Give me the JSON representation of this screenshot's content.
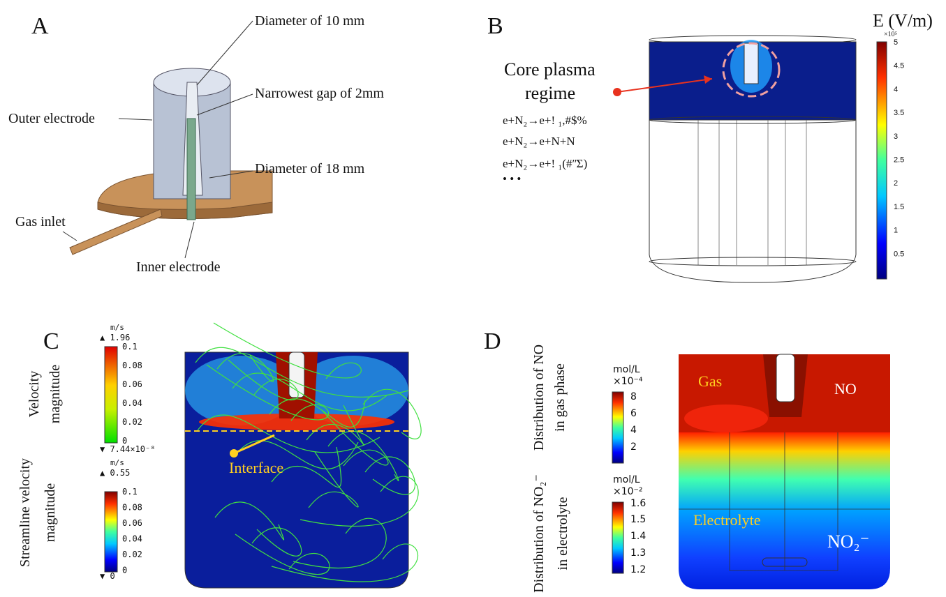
{
  "panels": {
    "a": {
      "label": "A",
      "annotations": [
        "Diameter of 10 mm",
        "Narrowest gap of 2mm",
        "Outer electrode",
        "Diameter of 18 mm",
        "Gas inlet",
        "Inner electrode"
      ]
    },
    "b": {
      "label": "B",
      "callout": [
        "Core plasma",
        "regime"
      ],
      "reactions": [
        "e+N₂→e+! ₁,#$%",
        "e+N₂→e+N+N",
        "e+N₂→e+! ₁(#ʺΣ)",
        "• • •"
      ],
      "colorbar": {
        "title": "E (V/m)",
        "multiplier": "×10⁵",
        "ticks": [
          "5",
          "4.5",
          "4",
          "3.5",
          "3",
          "2.5",
          "2",
          "1.5",
          "1",
          "0.5"
        ]
      }
    },
    "c": {
      "label": "C",
      "interface": "Interface",
      "colorbars": [
        {
          "title": [
            "Velocity",
            "magnitude"
          ],
          "unit": "m/s",
          "max": "▲ 1.96",
          "min": "▼ 7.44×10⁻⁸",
          "ticks": [
            "0.1",
            "0.08",
            "0.06",
            "0.04",
            "0.02",
            "0"
          ]
        },
        {
          "title": [
            "Streamline velocity",
            "magnitude"
          ],
          "unit": "m/s",
          "max": "▲ 0.55",
          "min": "▼ 0",
          "ticks": [
            "0.1",
            "0.08",
            "0.06",
            "0.04",
            "0.02",
            "0"
          ]
        }
      ]
    },
    "stray": "5",
    "d": {
      "label": "D",
      "regions": [
        "Gas",
        "NO",
        "Electrolyte",
        "NO₂⁻"
      ],
      "colorbars": [
        {
          "title": [
            "Distribution of NO",
            "in gas phase"
          ],
          "unit": "mol/L",
          "multiplier": "×10⁻⁴",
          "ticks": [
            "8",
            "6",
            "4",
            "2"
          ]
        },
        {
          "title": [
            "Distribution of NO₂⁻",
            "in electrolyte"
          ],
          "unit": "mol/L",
          "multiplier": "×10⁻²",
          "ticks": [
            "1.6",
            "1.5",
            "1.4",
            "1.3",
            "1.2"
          ]
        }
      ]
    }
  }
}
